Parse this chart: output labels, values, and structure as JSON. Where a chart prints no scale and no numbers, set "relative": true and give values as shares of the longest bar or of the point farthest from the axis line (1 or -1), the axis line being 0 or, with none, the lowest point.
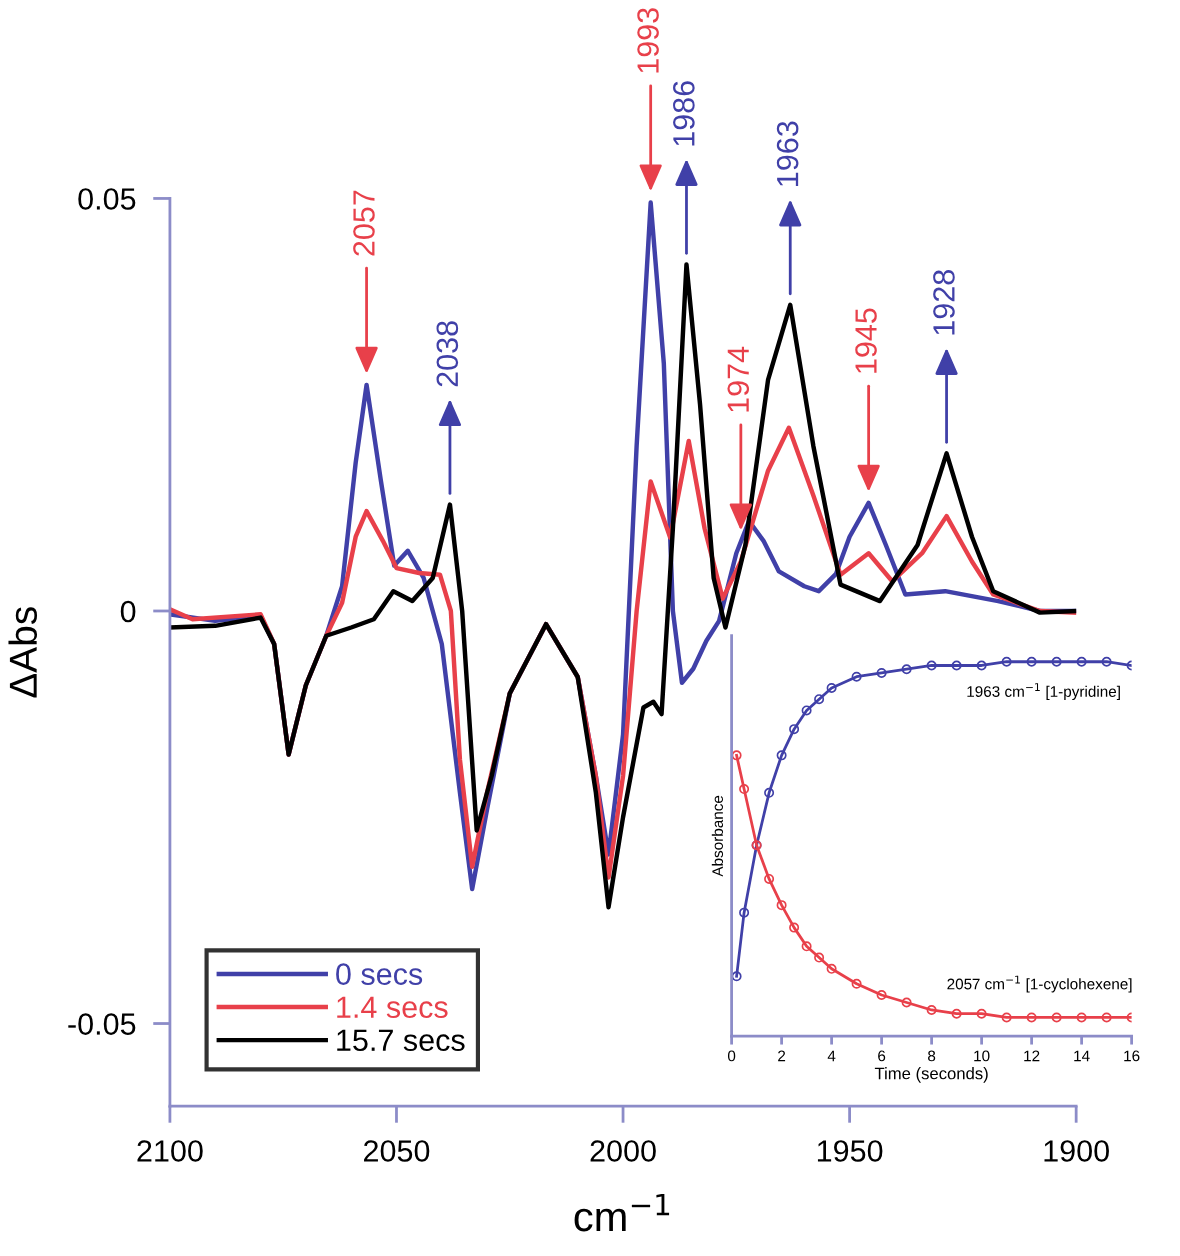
{
  "chart_data": [
    {
      "type": "line",
      "xlabel": "cm$^{−1}$",
      "ylabel": "ΔAbs",
      "xlim": [
        2100,
        1900
      ],
      "ylim": [
        -0.06,
        0.05
      ],
      "xticks": [
        2100,
        2050,
        2000,
        1950,
        1900
      ],
      "yticks": [
        0.05,
        0,
        {
          "value": -0.05,
          "label": "-0.05"
        }
      ],
      "legend": "bottom left",
      "marker": "none",
      "line_style": "solid",
      "series": [
        {
          "name": "0 secs",
          "color": "#4040a8",
          "x": [
            2100,
            2090,
            2080,
            2077,
            2073.8,
            2070,
            2065.5,
            2062,
            2059,
            2056.6,
            2053.5,
            2050.5,
            2047.5,
            2044,
            2040,
            2036,
            2033.3,
            2030,
            2025,
            2017,
            2010,
            2006,
            2003.2,
            2000,
            1997,
            1993.9,
            1991,
            1989,
            1987,
            1984.5,
            1981.6,
            1978.8,
            1975,
            1972.2,
            1969,
            1965.6,
            1960,
            1956.8,
            1953,
            1950,
            1945.8,
            1942,
            1937.7,
            1928.9,
            1917.2,
            1908,
            1900
          ],
          "values": [
            -0.0004,
            -0.0012,
            -0.0006,
            -0.004,
            -0.0174,
            -0.009,
            -0.003,
            0.003,
            0.018,
            0.0274,
            0.016,
            0.0055,
            0.0073,
            0.004,
            -0.004,
            -0.022,
            -0.0337,
            -0.024,
            -0.01,
            -0.0016,
            -0.008,
            -0.02,
            -0.0295,
            -0.015,
            0.02,
            0.0495,
            0.03,
            0.0,
            -0.0087,
            -0.007,
            -0.0036,
            -0.0012,
            0.007,
            0.0109,
            0.0085,
            0.0048,
            0.003,
            0.0024,
            0.0045,
            0.009,
            0.0131,
            0.008,
            0.002,
            0.0024,
            0.0012,
            0.0,
            0.0
          ]
        },
        {
          "name": "1.4 secs",
          "color": "#e8404a",
          "x": [
            2100,
            2095,
            2080,
            2077,
            2073.8,
            2070,
            2065.5,
            2062,
            2059,
            2056.6,
            2053,
            2050,
            2045,
            2040.4,
            2038,
            2036,
            2033.3,
            2030,
            2025,
            2017,
            2010,
            2006,
            2003.2,
            2000,
            1997,
            1993.9,
            1989.6,
            1985.5,
            1982,
            1978,
            1974,
            1968,
            1963.4,
            1958,
            1952,
            1945.8,
            1940.6,
            1934,
            1928.6,
            1923,
            1918.3,
            1908,
            1900
          ],
          "values": [
            0.0002,
            -0.001,
            -0.0004,
            -0.004,
            -0.0174,
            -0.009,
            -0.003,
            0.001,
            0.009,
            0.0121,
            0.0085,
            0.0052,
            0.0046,
            0.0044,
            0.0,
            -0.018,
            -0.031,
            -0.022,
            -0.01,
            -0.0016,
            -0.008,
            -0.02,
            -0.0323,
            -0.02,
            0.0,
            0.0157,
            0.0089,
            0.0206,
            0.01,
            0.0015,
            0.006,
            0.017,
            0.0222,
            0.014,
            0.0044,
            0.007,
            0.0036,
            0.007,
            0.0115,
            0.006,
            0.002,
            0.0,
            -0.0002
          ]
        },
        {
          "name": "15.7 secs",
          "color": "#000000",
          "x": [
            2100,
            2090,
            2080,
            2077,
            2073.8,
            2070,
            2065.5,
            2060,
            2055,
            2050.7,
            2046.5,
            2042,
            2038.2,
            2035.5,
            2032.3,
            2029,
            2025,
            2017,
            2010,
            2006,
            2003.2,
            2000,
            1995.5,
            1993.3,
            1991.5,
            1989,
            1986,
            1983,
            1980,
            1977.4,
            1973,
            1968,
            1963.1,
            1958,
            1952,
            1943.3,
            1935,
            1928.6,
            1923,
            1918.3,
            1908,
            1900
          ],
          "values": [
            -0.002,
            -0.0018,
            -0.0008,
            -0.004,
            -0.0174,
            -0.009,
            -0.003,
            -0.002,
            -0.001,
            0.0024,
            0.0012,
            0.004,
            0.0129,
            0.0,
            -0.0266,
            -0.02,
            -0.01,
            -0.0016,
            -0.008,
            -0.022,
            -0.0359,
            -0.025,
            -0.0117,
            -0.011,
            -0.0125,
            0.01,
            0.042,
            0.025,
            0.004,
            -0.002,
            0.008,
            0.028,
            0.0371,
            0.02,
            0.0032,
            0.0012,
            0.008,
            0.0191,
            0.009,
            0.0024,
            -0.0002,
            0.0
          ]
        }
      ],
      "annotations": [
        {
          "text": "2057",
          "x": 2056.6,
          "y": 0.0274
        },
        {
          "text": "2038",
          "x": 2038.2,
          "y": 0.0129
        },
        {
          "text": "1993",
          "x": 1993.9,
          "y": 0.0495
        },
        {
          "text": "1986",
          "x": 1986,
          "y": 0.042
        },
        {
          "text": "1974",
          "x": 1974,
          "y": 0.0084
        },
        {
          "text": "1963",
          "x": 1963.1,
          "y": 0.0371
        },
        {
          "text": "1945",
          "x": 1945.8,
          "y": 0.0131
        },
        {
          "text": "1928",
          "x": 1928.6,
          "y": 0.0191
        }
      ]
    },
    {
      "type": "line",
      "relative": true,
      "xlabel": "Time (seconds)",
      "ylabel": "Absorbance",
      "xlim": [
        0,
        16
      ],
      "xticks": [
        0,
        2,
        4,
        6,
        8,
        10,
        12,
        14,
        16
      ],
      "marker": "circle",
      "line_style": "solid",
      "series": [
        {
          "color": "#4040a8",
          "x": [
            0.2,
            0.5,
            1,
            1.5,
            2,
            2.5,
            3,
            3.5,
            4,
            5,
            6,
            7,
            8,
            9,
            10,
            11,
            12,
            13,
            14,
            15,
            16
          ],
          "values": [
            0.16,
            0.33,
            0.51,
            0.65,
            0.75,
            0.82,
            0.87,
            0.9,
            0.93,
            0.96,
            0.97,
            0.98,
            0.99,
            0.99,
            0.99,
            1.0,
            1.0,
            1.0,
            1.0,
            1.0,
            0.99
          ]
        },
        {
          "color": "#e8404a",
          "x": [
            0.2,
            0.5,
            1,
            1.5,
            2,
            2.5,
            3,
            3.5,
            4,
            5,
            6,
            7,
            8,
            9,
            10,
            11,
            12,
            13,
            14,
            15,
            16
          ],
          "values": [
            0.75,
            0.66,
            0.51,
            0.42,
            0.35,
            0.29,
            0.24,
            0.21,
            0.18,
            0.14,
            0.11,
            0.09,
            0.07,
            0.06,
            0.06,
            0.05,
            0.05,
            0.05,
            0.05,
            0.05,
            0.05
          ]
        }
      ],
      "annotations": [
        "1963 cm$^{−1}$ [1-pyridine]",
        "2057 cm$^{−1}$ [1-cyclohexene]"
      ]
    }
  ]
}
